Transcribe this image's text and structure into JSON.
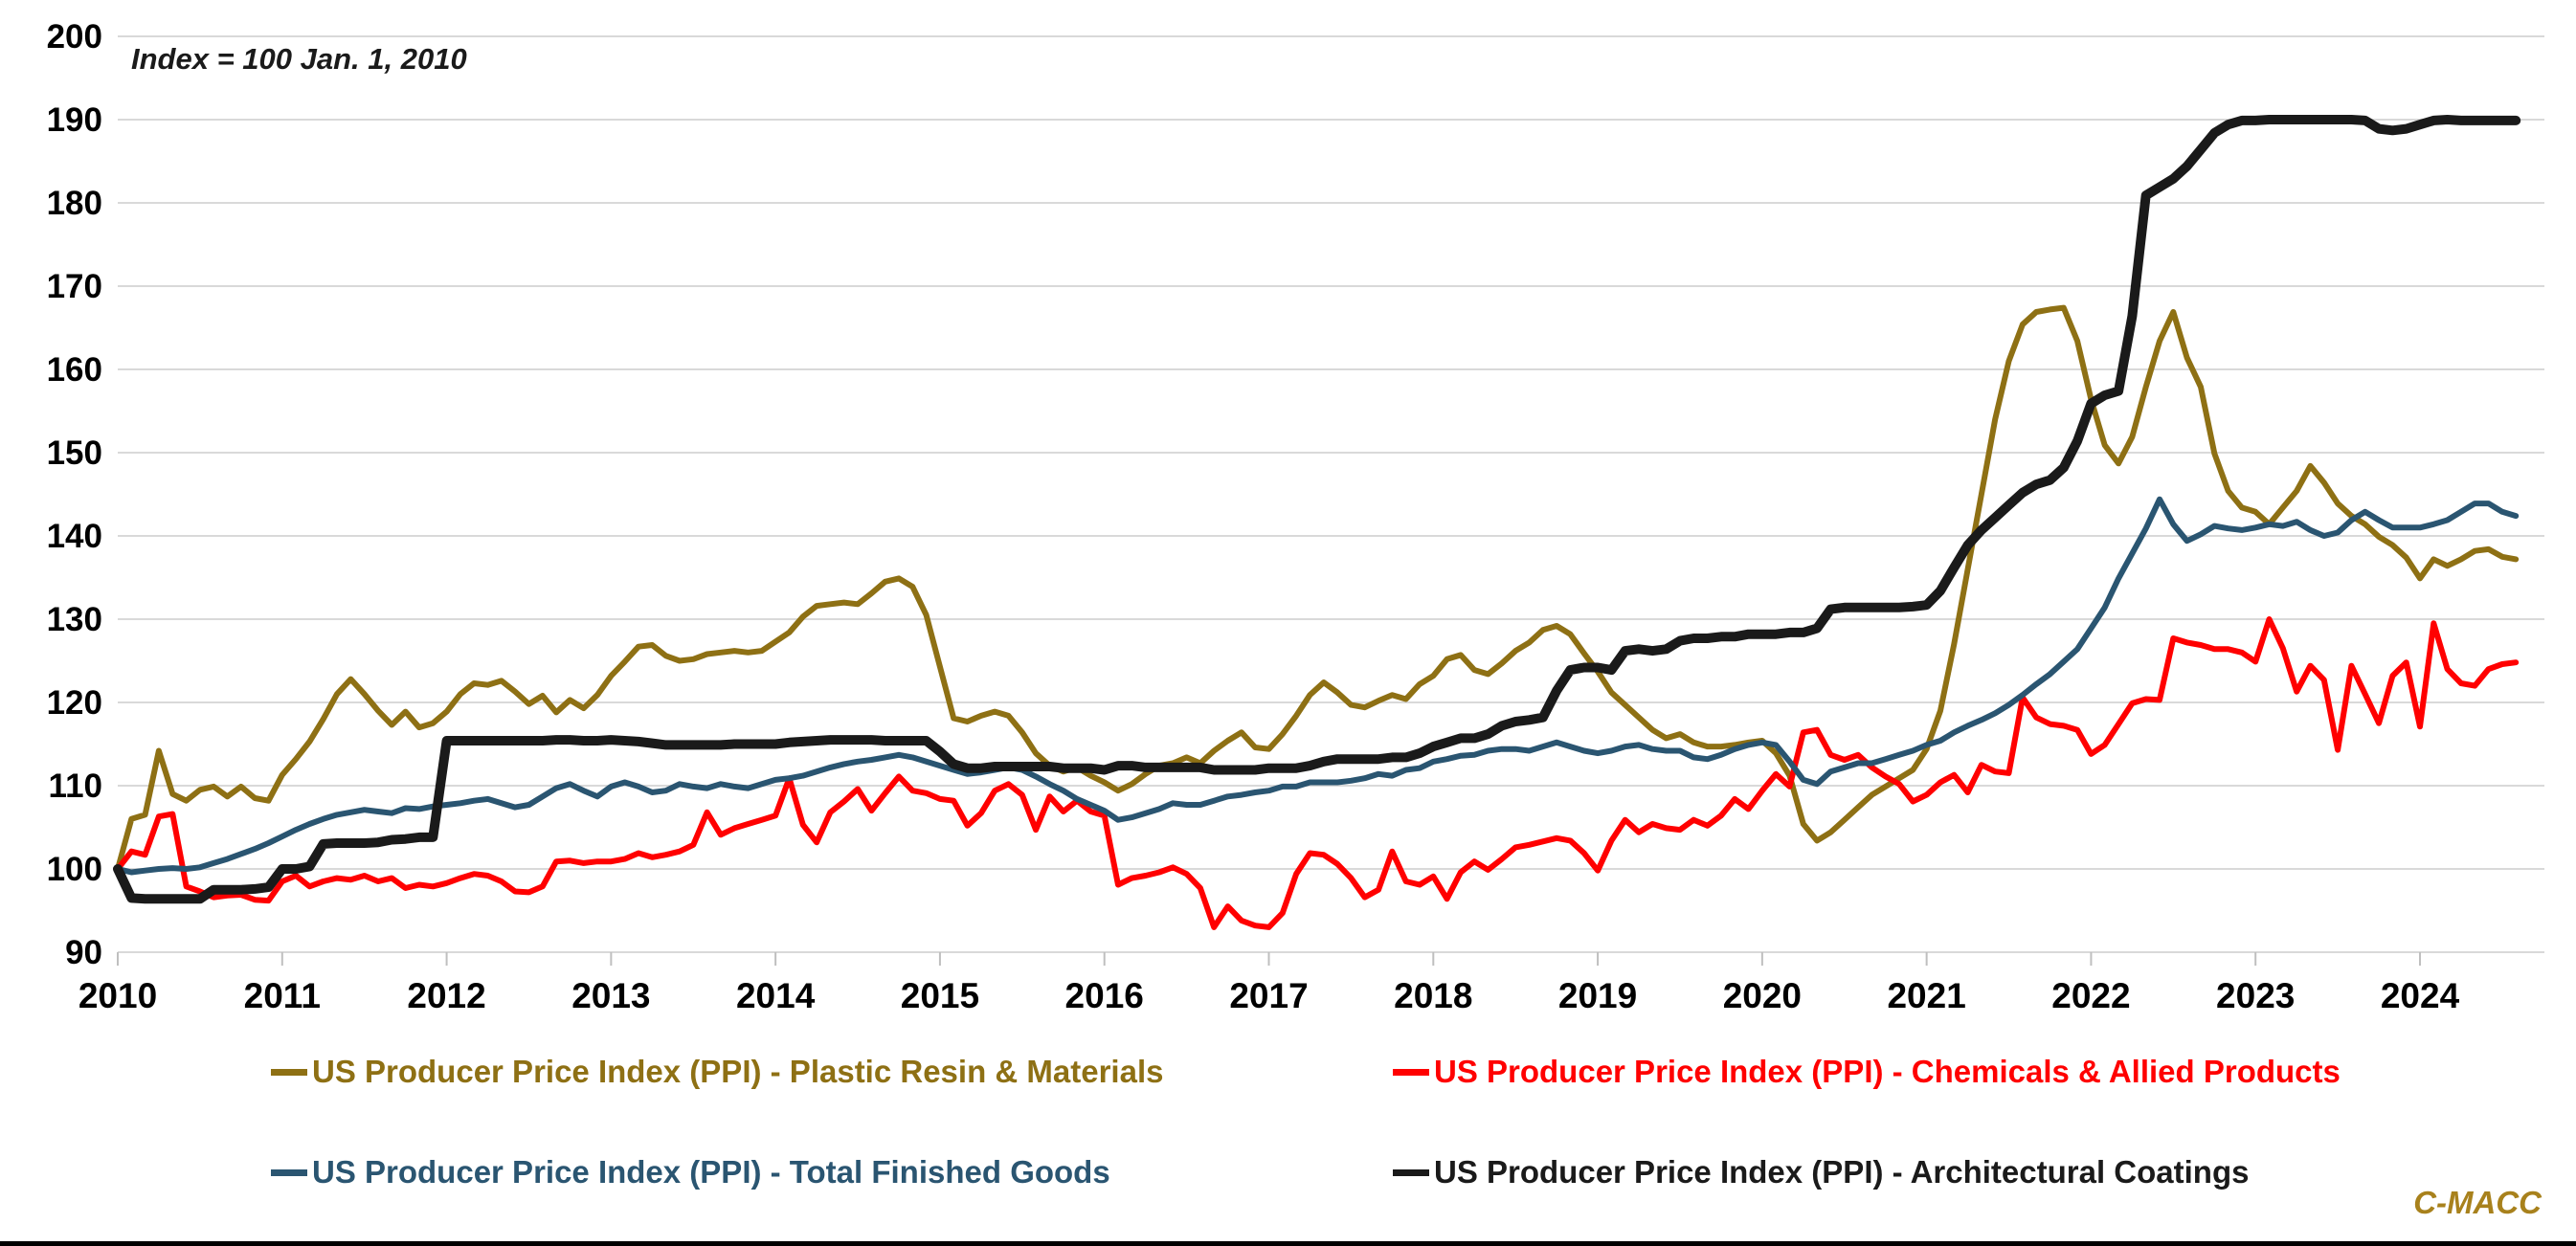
{
  "annotation": {
    "text": "Index = 100 Jan. 1, 2010"
  },
  "watermark": {
    "text": "C-MACC"
  },
  "colors": {
    "plastic_resin": "#8E7014",
    "chemicals": "#FF0000",
    "finished_goods": "#2A5571",
    "architectural_coatings": "#1A1A1A",
    "gridline": "#D9D9D9",
    "tick": "#BFBFBF",
    "axis_text": "#000000",
    "watermark_gold": "#A8811C"
  },
  "chart_data": {
    "type": "line",
    "title": "",
    "xlabel": "",
    "ylabel": "",
    "grid": "horizontal",
    "legend_position": "bottom",
    "ylim": [
      90,
      200
    ],
    "y_ticks": [
      200,
      190,
      180,
      170,
      160,
      150,
      140,
      130,
      120,
      110,
      100,
      90
    ],
    "x_year_labels": [
      "2010",
      "2011",
      "2012",
      "2013",
      "2014",
      "2015",
      "2016",
      "2017",
      "2018",
      "2019",
      "2020",
      "2021",
      "2022",
      "2023",
      "2024"
    ],
    "x_start_month": "2010-01",
    "x_frequency": "monthly",
    "series": [
      {
        "name": "US Producer Price Index (PPI) - Plastic Resin & Materials",
        "color": "#8E7014",
        "width": 6,
        "values": [
          100,
          106,
          106.5,
          114.2,
          109,
          108.2,
          109.5,
          109.9,
          108.7,
          109.9,
          108.5,
          108.2,
          111.3,
          113.2,
          115.3,
          118,
          121,
          122.8,
          121,
          119,
          117.3,
          118.9,
          117,
          117.5,
          118.9,
          121,
          122.3,
          122.1,
          122.6,
          121.3,
          119.8,
          120.8,
          118.8,
          120.3,
          119.3,
          120.9,
          123.2,
          124.9,
          126.7,
          126.9,
          125.6,
          125,
          125.2,
          125.8,
          126,
          126.2,
          126,
          126.2,
          127.3,
          128.4,
          130.3,
          131.6,
          131.8,
          132,
          131.8,
          133.1,
          134.5,
          134.9,
          133.9,
          130.5,
          124.3,
          118.1,
          117.7,
          118.4,
          118.9,
          118.4,
          116.4,
          113.9,
          112.4,
          111.7,
          112.2,
          111.2,
          110.4,
          109.4,
          110.2,
          111.4,
          112.4,
          112.7,
          113.4,
          112.7,
          114.2,
          115.4,
          116.4,
          114.6,
          114.4,
          116.2,
          118.4,
          120.9,
          122.4,
          121.2,
          119.7,
          119.4,
          120.2,
          120.9,
          120.4,
          122.2,
          123.2,
          125.2,
          125.7,
          123.9,
          123.4,
          124.7,
          126.2,
          127.2,
          128.7,
          129.2,
          128.2,
          125.9,
          123.7,
          121.2,
          119.7,
          118.2,
          116.7,
          115.7,
          116.2,
          115.2,
          114.7,
          114.7,
          114.9,
          115.2,
          115.4,
          113.9,
          111.2,
          105.4,
          103.4,
          104.4,
          105.9,
          107.4,
          108.9,
          109.9,
          110.9,
          111.9,
          114.4,
          119,
          127,
          136,
          145,
          154,
          161,
          165.4,
          166.9,
          167.2,
          167.4,
          163.4,
          156.4,
          150.9,
          148.7,
          151.9,
          157.9,
          163.4,
          166.9,
          161.4,
          157.9,
          149.9,
          145.4,
          143.4,
          142.9,
          141.4,
          143.4,
          145.4,
          148.4,
          146.4,
          143.9,
          142.4,
          141.4,
          139.9,
          138.9,
          137.4,
          134.9,
          137.2,
          136.4,
          137.2,
          138.2,
          138.4,
          137.5,
          137.2
        ]
      },
      {
        "name": "US Producer Price Index (PPI) - Chemicals & Allied Products",
        "color": "#FF0000",
        "width": 6,
        "values": [
          100,
          102.1,
          101.7,
          106.3,
          106.6,
          97.9,
          97.3,
          96.6,
          96.8,
          96.9,
          96.3,
          96.2,
          98.5,
          99.2,
          97.9,
          98.5,
          98.9,
          98.7,
          99.2,
          98.5,
          98.9,
          97.7,
          98.1,
          97.9,
          98.3,
          98.9,
          99.4,
          99.2,
          98.5,
          97.3,
          97.2,
          97.9,
          100.9,
          101,
          100.7,
          100.9,
          100.9,
          101.2,
          101.9,
          101.4,
          101.7,
          102.1,
          102.9,
          106.8,
          104.1,
          104.9,
          105.4,
          105.9,
          106.4,
          110.9,
          105.3,
          103.2,
          106.8,
          108.1,
          109.6,
          107,
          109.1,
          111.1,
          109.4,
          109.1,
          108.4,
          108.2,
          105.2,
          106.7,
          109.4,
          110.2,
          108.9,
          104.7,
          108.7,
          106.9,
          108.2,
          106.9,
          106.4,
          98.1,
          98.9,
          99.2,
          99.6,
          100.2,
          99.4,
          97.7,
          93,
          95.5,
          93.8,
          93.2,
          93,
          94.7,
          99.4,
          101.9,
          101.7,
          100.6,
          98.9,
          96.6,
          97.5,
          102.1,
          98.5,
          98.1,
          99.1,
          96.4,
          99.6,
          100.9,
          99.9,
          101.2,
          102.6,
          102.9,
          103.3,
          103.7,
          103.4,
          101.9,
          99.8,
          103.4,
          105.9,
          104.4,
          105.4,
          104.9,
          104.7,
          105.9,
          105.2,
          106.4,
          108.4,
          107.2,
          109.4,
          111.4,
          109.9,
          116.4,
          116.7,
          113.7,
          113.1,
          113.7,
          112.2,
          111.1,
          110.2,
          108.1,
          108.9,
          110.4,
          111.3,
          109.2,
          112.5,
          111.7,
          111.5,
          120.6,
          118.2,
          117.4,
          117.2,
          116.7,
          113.8,
          114.9,
          117.4,
          119.9,
          120.4,
          120.3,
          127.7,
          127.2,
          126.9,
          126.4,
          126.4,
          126,
          124.9,
          130,
          126.5,
          121.3,
          124.4,
          122.7,
          114.3,
          124.4,
          121,
          117.5,
          123.2,
          124.8,
          117.1,
          129.5,
          124,
          122.3,
          122,
          124,
          124.6,
          124.8
        ]
      },
      {
        "name": "US Producer Price Index (PPI) - Total Finished Goods",
        "color": "#2A5571",
        "width": 6,
        "values": [
          100,
          99.6,
          99.8,
          100,
          100.1,
          100,
          100.2,
          100.7,
          101.2,
          101.8,
          102.4,
          103.1,
          103.9,
          104.7,
          105.4,
          106,
          106.5,
          106.8,
          107.1,
          106.9,
          106.7,
          107.3,
          107.2,
          107.5,
          107.7,
          107.9,
          108.2,
          108.4,
          107.9,
          107.4,
          107.7,
          108.7,
          109.7,
          110.2,
          109.4,
          108.7,
          109.9,
          110.4,
          109.9,
          109.2,
          109.4,
          110.2,
          109.9,
          109.7,
          110.2,
          109.9,
          109.7,
          110.2,
          110.7,
          110.9,
          111.2,
          111.7,
          112.2,
          112.6,
          112.9,
          113.1,
          113.4,
          113.7,
          113.4,
          112.9,
          112.4,
          111.9,
          111.4,
          111.6,
          111.9,
          112.2,
          111.9,
          111.1,
          110.2,
          109.4,
          108.4,
          107.7,
          107,
          105.9,
          106.2,
          106.7,
          107.2,
          107.9,
          107.7,
          107.7,
          108.2,
          108.7,
          108.9,
          109.2,
          109.4,
          109.9,
          109.9,
          110.4,
          110.4,
          110.4,
          110.6,
          110.9,
          111.4,
          111.2,
          111.9,
          112.1,
          112.9,
          113.2,
          113.6,
          113.7,
          114.2,
          114.4,
          114.4,
          114.2,
          114.7,
          115.2,
          114.7,
          114.2,
          113.9,
          114.2,
          114.7,
          114.9,
          114.4,
          114.2,
          114.2,
          113.4,
          113.2,
          113.7,
          114.4,
          114.9,
          115.2,
          114.9,
          112.9,
          110.7,
          110.2,
          111.7,
          112.2,
          112.7,
          112.7,
          113.2,
          113.7,
          114.2,
          114.9,
          115.4,
          116.4,
          117.2,
          117.9,
          118.7,
          119.7,
          120.9,
          122.2,
          123.4,
          124.9,
          126.4,
          128.9,
          131.4,
          134.9,
          137.9,
          140.9,
          144.4,
          141.4,
          139.4,
          140.2,
          141.2,
          140.9,
          140.7,
          141,
          141.4,
          141.2,
          141.7,
          140.7,
          140,
          140.4,
          141.9,
          142.9,
          141.9,
          141,
          141,
          141,
          141.4,
          141.9,
          142.9,
          143.9,
          143.9,
          142.9,
          142.4
        ]
      },
      {
        "name": "US Producer Price Index (PPI) - Architectural Coatings",
        "color": "#1A1A1A",
        "width": 10,
        "values": [
          100,
          96.5,
          96.4,
          96.4,
          96.4,
          96.4,
          96.4,
          97.5,
          97.5,
          97.5,
          97.6,
          97.8,
          100,
          100,
          100.3,
          103,
          103.1,
          103.1,
          103.1,
          103.2,
          103.5,
          103.6,
          103.8,
          103.8,
          115.4,
          115.4,
          115.4,
          115.4,
          115.4,
          115.4,
          115.4,
          115.4,
          115.5,
          115.5,
          115.4,
          115.4,
          115.5,
          115.4,
          115.3,
          115.1,
          114.9,
          114.9,
          114.9,
          114.9,
          114.9,
          115,
          115,
          115,
          115,
          115.2,
          115.3,
          115.4,
          115.5,
          115.5,
          115.5,
          115.5,
          115.4,
          115.4,
          115.4,
          115.4,
          114.1,
          112.6,
          112.1,
          112.1,
          112.3,
          112.3,
          112.3,
          112.3,
          112.3,
          112.1,
          112.1,
          112.1,
          111.9,
          112.4,
          112.4,
          112.2,
          112.2,
          112.2,
          112.2,
          112.2,
          111.9,
          111.9,
          111.9,
          111.9,
          112.1,
          112.1,
          112.1,
          112.4,
          112.9,
          113.2,
          113.2,
          113.2,
          113.2,
          113.4,
          113.4,
          113.9,
          114.7,
          115.2,
          115.7,
          115.7,
          116.2,
          117.2,
          117.7,
          117.9,
          118.2,
          121.4,
          123.9,
          124.2,
          124.2,
          123.9,
          126.2,
          126.4,
          126.2,
          126.4,
          127.4,
          127.7,
          127.7,
          127.9,
          127.9,
          128.2,
          128.2,
          128.2,
          128.4,
          128.4,
          128.9,
          131.2,
          131.4,
          131.4,
          131.4,
          131.4,
          131.4,
          131.5,
          131.7,
          133.4,
          136.2,
          138.9,
          140.7,
          142.2,
          143.7,
          145.2,
          146.2,
          146.7,
          148.2,
          151.4,
          155.9,
          156.9,
          157.4,
          166.4,
          180.9,
          181.9,
          182.9,
          184.4,
          186.4,
          188.4,
          189.4,
          189.9,
          189.9,
          190,
          190,
          190,
          190,
          190,
          190,
          190,
          189.9,
          188.9,
          188.7,
          188.9,
          189.4,
          189.9,
          190,
          189.9,
          189.9,
          189.9,
          189.9,
          189.9
        ]
      }
    ]
  }
}
